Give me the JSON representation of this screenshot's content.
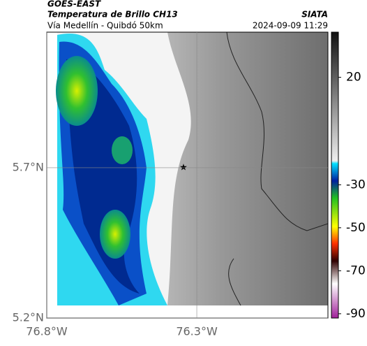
{
  "header": {
    "source": "GOES-EAST",
    "title": "Temperatura de Brillo CH13",
    "subtitle": "Vía Medellín - Quibdó 50km",
    "brand": "SIATA",
    "timestamp": "2024-09-09 11:29"
  },
  "map": {
    "lonlim": [
      -76.8,
      -75.863
    ],
    "latlim": [
      5.2,
      6.151
    ],
    "lonticks": [
      {
        "value": -76.8,
        "label": "76.8°W"
      },
      {
        "value": -76.3,
        "label": "76.3°W"
      }
    ],
    "latticks": [
      {
        "value": 5.7,
        "label": "5.7°N"
      },
      {
        "value": 5.2,
        "label": "5.2°N"
      }
    ]
  },
  "colorbar": {
    "lim": [
      -92,
      41
    ],
    "ticks": [
      20,
      -30,
      -50,
      -70,
      -90
    ]
  }
}
